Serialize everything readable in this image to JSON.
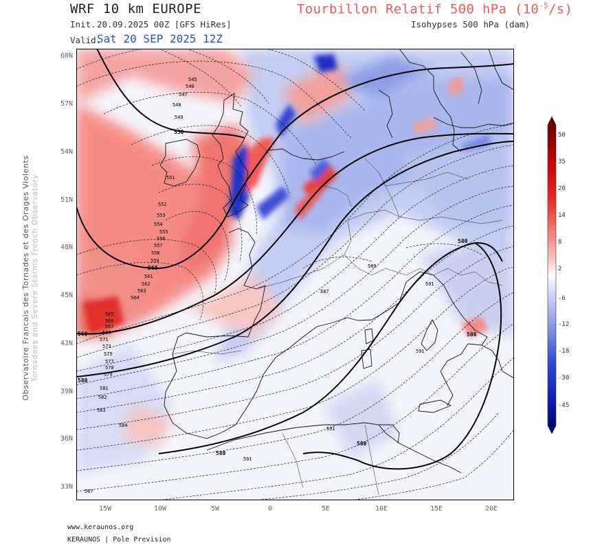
{
  "header": {
    "model": "WRF 10 km EUROPE",
    "field": "Tourbillon Relatif 500 hPa (10⁻⁵/s)",
    "init_label": "Init.",
    "init_value": "20.09.2025 00Z [GFS HiRes]",
    "contour_label": "Isohypses 500 hPa (dam)",
    "valid_label": "Valid.",
    "valid_value": "Sat 20 SEP 2025 12Z"
  },
  "side_credit": {
    "line1": "Observatoire Francais des Tornades et des Orages Violents",
    "line2": "Tornadoes and Severe Storms French Observatory"
  },
  "axes": {
    "lat_labels": [
      "60N",
      "57N",
      "54N",
      "51N",
      "48N",
      "45N",
      "42N",
      "39N",
      "36N",
      "33N"
    ],
    "lon_labels": [
      "15W",
      "10W",
      "5W",
      "0",
      "5E",
      "10E",
      "15E",
      "20E"
    ]
  },
  "colorbar": {
    "labels": [
      "50",
      "35",
      "20",
      "14",
      "8",
      "2",
      "-6",
      "-12",
      "-18",
      "-30",
      "-45"
    ]
  },
  "contours": {
    "heavy": [
      "550",
      "560",
      "560",
      "580",
      "580",
      "580",
      "580",
      "580"
    ],
    "minor": [
      "545",
      "546",
      "547",
      "548",
      "549",
      "551",
      "552",
      "553",
      "554",
      "555",
      "556",
      "557",
      "558",
      "559",
      "561",
      "562",
      "563",
      "564",
      "565",
      "566",
      "567",
      "569",
      "571",
      "573",
      "575",
      "577",
      "578",
      "579",
      "581",
      "582",
      "583",
      "584",
      "587",
      "587",
      "589",
      "591",
      "591",
      "591",
      "591"
    ]
  },
  "footer": {
    "url": "www.keraunos.org",
    "brand": "KERAUNOS | Pole Prevision"
  },
  "colors": {
    "positive": "#ee3333",
    "negative": "#2f49d8",
    "title_field": "#f05a5a",
    "valid_date": "#2a4dd6"
  }
}
